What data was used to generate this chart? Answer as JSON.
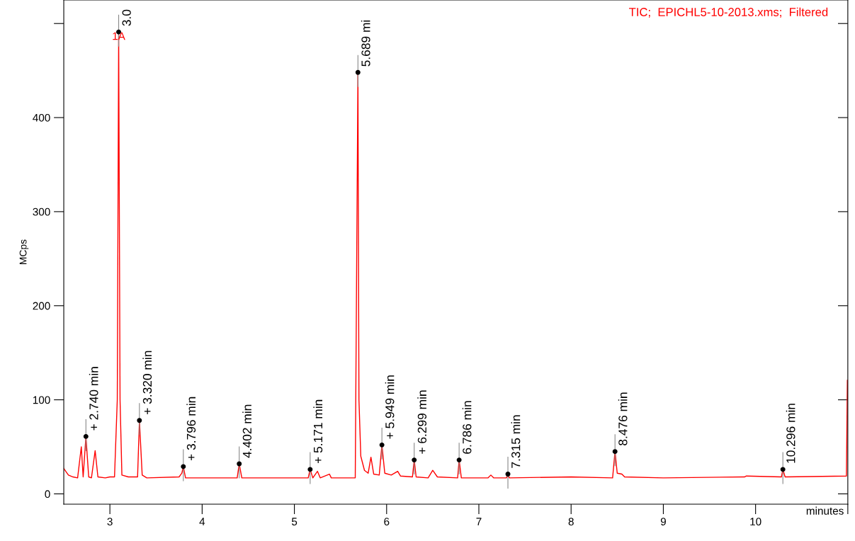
{
  "chart_data": {
    "type": "line",
    "title": "TIC;  EPICHL5-10-2013.xms;  Filtered",
    "xlabel": "minutes",
    "ylabel": "MCps",
    "x": [
      2.5,
      2.55,
      2.6,
      2.65,
      2.69,
      2.71,
      2.74,
      2.77,
      2.8,
      2.84,
      2.87,
      2.95,
      3.0,
      3.05,
      3.08,
      3.095,
      3.11,
      3.13,
      3.2,
      3.3,
      3.32,
      3.35,
      3.4,
      3.75,
      3.78,
      3.796,
      3.82,
      4.38,
      4.402,
      4.43,
      5.15,
      5.171,
      5.2,
      5.25,
      5.28,
      5.38,
      5.4,
      5.66,
      5.689,
      5.7,
      5.72,
      5.76,
      5.8,
      5.83,
      5.86,
      5.92,
      5.949,
      5.98,
      6.05,
      6.12,
      6.15,
      6.28,
      6.299,
      6.32,
      6.45,
      6.5,
      6.55,
      6.77,
      6.786,
      6.81,
      7.1,
      7.13,
      7.16,
      7.3,
      7.315,
      7.33,
      8.0,
      8.45,
      8.476,
      8.5,
      8.55,
      8.58,
      9.0,
      9.88,
      9.9,
      10.28,
      10.296,
      10.32,
      10.985,
      10.995,
      11.0
    ],
    "series": [
      {
        "color": "#ff0000",
        "values": [
          27,
          20,
          18,
          17,
          50,
          18,
          61,
          18,
          17,
          46,
          18,
          17,
          18,
          18,
          100,
          491,
          100,
          20,
          18,
          18,
          78,
          20,
          17,
          18,
          22,
          29,
          17,
          17,
          32,
          17,
          17,
          26,
          17,
          24,
          17,
          21,
          17,
          17,
          448,
          100,
          40,
          25,
          22,
          39,
          21,
          20,
          52,
          22,
          20,
          24,
          19,
          18,
          36,
          18,
          17,
          25,
          18,
          17,
          36,
          17,
          17,
          20,
          17,
          17,
          21,
          17,
          18,
          17,
          45,
          22,
          21,
          18,
          17,
          18,
          19,
          18,
          26,
          18,
          19,
          121,
          100
        ]
      }
    ],
    "xlim": [
      2.5,
      11.0
    ],
    "ylim": [
      -11,
      525
    ],
    "xticks": [
      3,
      4,
      5,
      6,
      7,
      8,
      9,
      10,
      {
        "value": 11,
        "label": null
      }
    ],
    "yticks": [
      0,
      100,
      200,
      300,
      400,
      {
        "value": 500,
        "label": null
      }
    ],
    "grid": false,
    "legend": false,
    "marker": "none",
    "line_style": "solid",
    "annotations": [
      "1A",
      {
        "text": "+ 2.740 min",
        "x": 2.74,
        "y": 61
      },
      {
        "text": "3.0",
        "x": 3.095,
        "y": 491
      },
      {
        "text": "+ 3.320 min",
        "x": 3.32,
        "y": 78
      },
      {
        "text": "+ 3.796 min",
        "x": 3.796,
        "y": 29
      },
      {
        "text": "4.402 min",
        "x": 4.402,
        "y": 32
      },
      {
        "text": "+ 5.171 min",
        "x": 5.171,
        "y": 26
      },
      {
        "text": "5.689 mi",
        "x": 5.689,
        "y": 448
      },
      {
        "text": "+ 5.949 min",
        "x": 5.949,
        "y": 52
      },
      {
        "text": "+ 6.299 min",
        "x": 6.299,
        "y": 36
      },
      {
        "text": "6.786 min",
        "x": 6.786,
        "y": 36
      },
      {
        "text": "7.315 min",
        "x": 7.315,
        "y": 21
      },
      {
        "text": "8.476 min",
        "x": 8.476,
        "y": 45
      },
      {
        "text": "10.296 min",
        "x": 10.296,
        "y": 26
      }
    ]
  }
}
